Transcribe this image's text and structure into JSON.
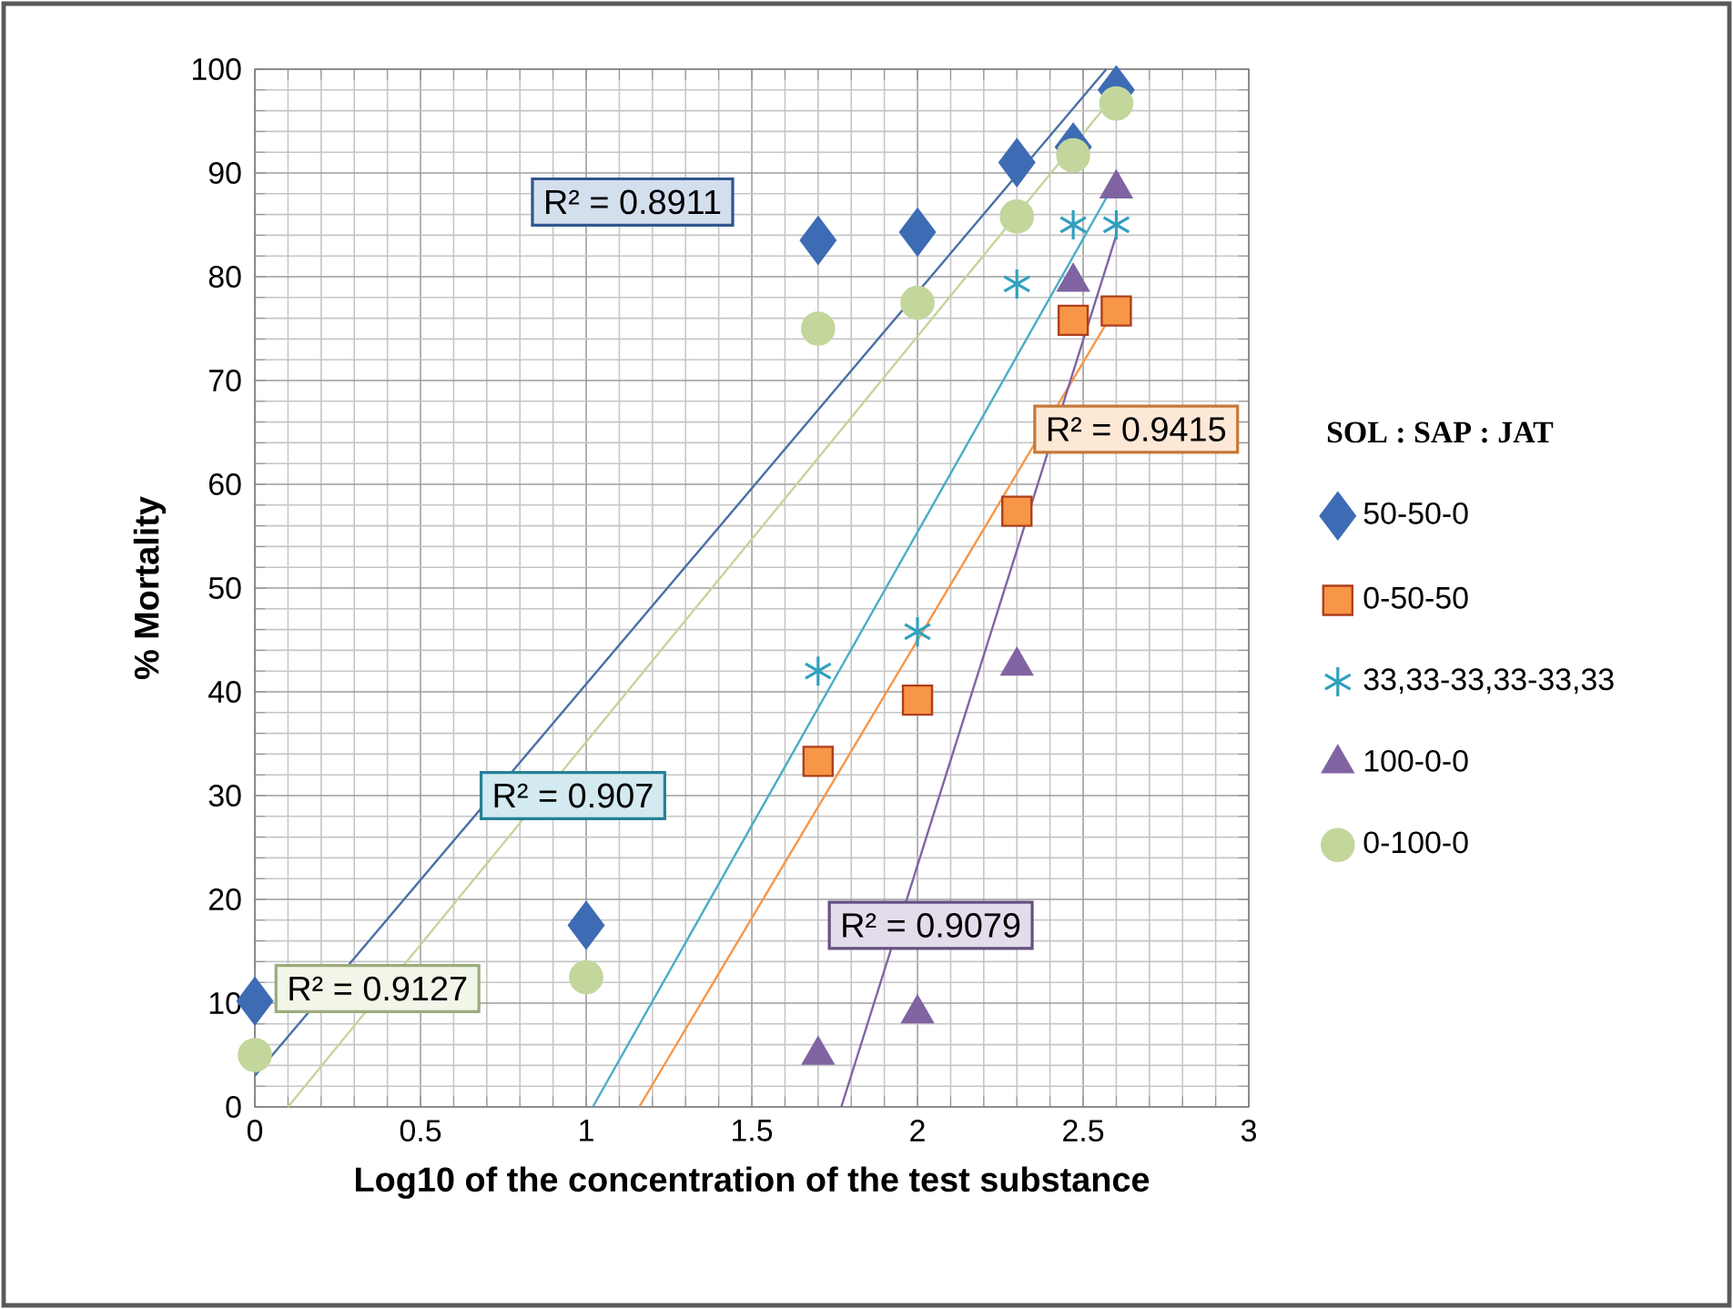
{
  "chart_data": {
    "type": "scatter",
    "xlabel": "Log10 of the concentration of the test substance",
    "ylabel": "% Mortality",
    "legend_title": "SOL : SAP : JAT",
    "annotations": [
      "R² = 0.8911",
      "R² = 0.9415",
      "R² = 0.907",
      "R² = 0.9079",
      "R² = 0.9127"
    ],
    "xlim": [
      0,
      3
    ],
    "ylim": [
      0,
      100
    ],
    "xticks": [
      0,
      0.5,
      1,
      1.5,
      2,
      2.5,
      3
    ],
    "yticks": [
      0,
      10,
      20,
      30,
      40,
      50,
      60,
      70,
      80,
      90,
      100
    ],
    "grid": true,
    "legend": "right",
    "series": [
      {
        "name": "50-50-0",
        "marker": "diamond",
        "color": "#3d6cb4",
        "x": [
          0,
          1,
          1.7,
          2,
          2.3,
          2.47,
          2.6
        ],
        "values": [
          10.2,
          17.5,
          83.5,
          84.3,
          91,
          92.5,
          98
        ]
      },
      {
        "name": "0-50-50",
        "marker": "square",
        "color": "#f79646",
        "x": [
          1.7,
          2,
          2.3,
          2.47,
          2.6
        ],
        "values": [
          33.3,
          39.2,
          57.4,
          75.8,
          76.7
        ]
      },
      {
        "name": "33,33-33,33-33,33",
        "marker": "cross",
        "color": "#31a0bd",
        "x": [
          1.7,
          2,
          2.3,
          2.47,
          2.6
        ],
        "values": [
          42,
          45.8,
          79.3,
          85,
          85
        ]
      },
      {
        "name": "100-0-0",
        "marker": "triangle",
        "color": "#8064a2",
        "x": [
          1.7,
          2,
          2.3,
          2.47,
          2.6
        ],
        "values": [
          5,
          9,
          42.5,
          79.5,
          88.5
        ]
      },
      {
        "name": "0-100-0",
        "marker": "circle",
        "color": "#c3d69b",
        "x": [
          0,
          1,
          1.7,
          2,
          2.3,
          2.47,
          2.6
        ],
        "values": [
          5,
          12.5,
          75,
          77.5,
          85.8,
          91.7,
          96.7
        ]
      },
      {
        "type": "line",
        "marker": "none",
        "color": "#4a6fa5",
        "x": [
          0,
          2.57
        ],
        "values": [
          3,
          100
        ]
      },
      {
        "type": "line",
        "marker": "none",
        "color": "#f79646",
        "x": [
          1.16,
          2.6
        ],
        "values": [
          0,
          77.1
        ]
      },
      {
        "type": "line",
        "marker": "none",
        "color": "#4bacc6",
        "x": [
          1.02,
          2.6
        ],
        "values": [
          0,
          89.3
        ]
      },
      {
        "type": "line",
        "marker": "none",
        "color": "#8064a2",
        "x": [
          1.77,
          2.6
        ],
        "values": [
          0,
          84
        ]
      },
      {
        "type": "line",
        "marker": "none",
        "color": "#c3d69b",
        "x": [
          0.1,
          2.6
        ],
        "values": [
          0,
          97.7
        ]
      }
    ]
  }
}
